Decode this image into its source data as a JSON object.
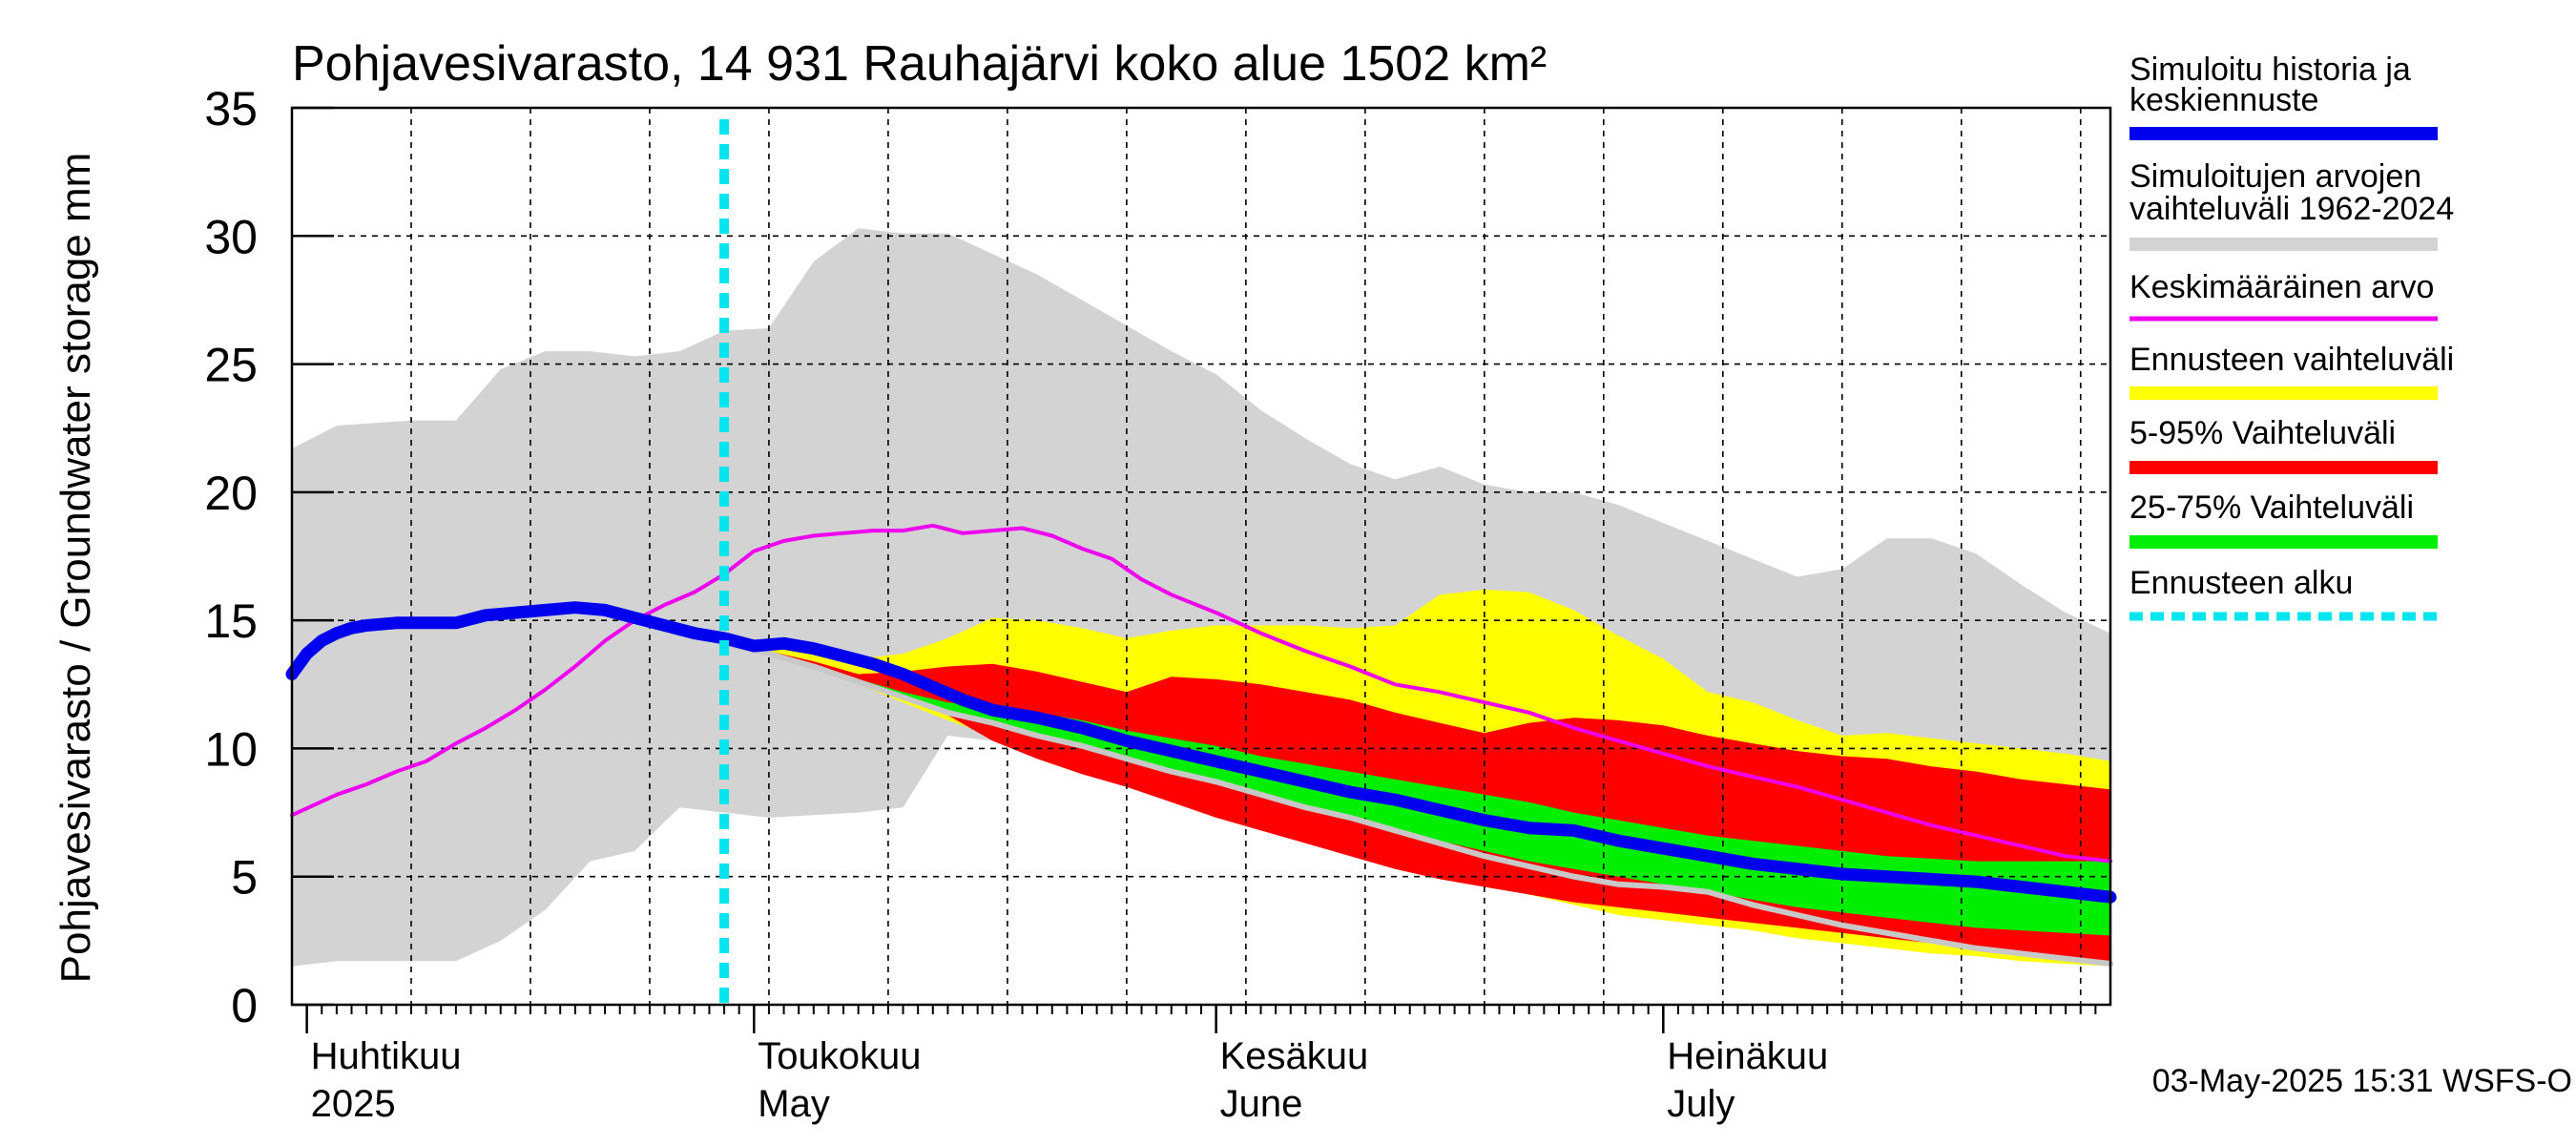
{
  "chart_data": {
    "type": "area",
    "title": "Pohjavesivarasto, 14 931 Rauhajärvi koko alue 1502 km²",
    "ylabel": "Pohjavesivarasto / Groundwater storage   mm",
    "ylim": [
      0,
      35
    ],
    "yticks": [
      "0",
      "5",
      "10",
      "15",
      "20",
      "25",
      "30",
      "35"
    ],
    "x_domain": [
      "2025-03-31",
      "2025-07-31"
    ],
    "months": [
      {
        "start": "2025-04-01",
        "fi": "Huhtikuu",
        "en": "2025"
      },
      {
        "start": "2025-05-01",
        "fi": "Toukokuu",
        "en": "May"
      },
      {
        "start": "2025-06-01",
        "fi": "Kesäkuu",
        "en": "June"
      },
      {
        "start": "2025-07-01",
        "fi": "Heinäkuu",
        "en": "July"
      }
    ],
    "forecast_start": "2025-04-29",
    "timestamp": "03-May-2025 15:31 WSFS-O",
    "colors": {
      "history": "#0000ee",
      "range": "#d3d3d3",
      "mean": "#ee00ee",
      "forecast_range": "#ffff00",
      "p5_95": "#ff0000",
      "p25_75": "#00ee00",
      "forecast_start": "#00e5ee",
      "median_grey": "#c8c8c8"
    },
    "legend": [
      {
        "label": "Simuloitu historia ja",
        "label2": "keskiennuste",
        "key": "history"
      },
      {
        "label": "Simuloitujen arvojen",
        "label2": "vaihteluväli 1962-2024",
        "key": "range"
      },
      {
        "label": "Keskimääräinen arvo",
        "key": "mean"
      },
      {
        "label": "Ennusteen vaihteluväli",
        "key": "forecast_range"
      },
      {
        "label": "5-95% Vaihteluväli",
        "key": "p5_95"
      },
      {
        "label": "25-75% Vaihteluväli",
        "key": "p25_75"
      },
      {
        "label": "Ennusteen alku",
        "key": "forecast_start"
      }
    ],
    "series": {
      "range_upper": {
        "t": [
          0,
          3,
          8,
          11,
          14,
          17,
          20,
          23,
          26,
          29,
          32,
          35,
          38,
          41,
          44,
          47,
          50,
          53,
          56,
          59,
          62,
          65,
          68,
          71,
          74,
          77,
          80,
          83,
          86,
          89,
          92,
          95,
          98,
          101,
          104,
          107,
          110,
          113,
          116,
          119,
          122
        ],
        "v": [
          21.7,
          22.6,
          22.8,
          22.8,
          24.8,
          25.5,
          25.5,
          25.3,
          25.5,
          26.3,
          26.4,
          29.0,
          30.3,
          30.1,
          30.1,
          29.3,
          28.5,
          27.5,
          26.5,
          25.5,
          24.6,
          23.2,
          22.1,
          21.1,
          20.5,
          21.0,
          20.3,
          20.0,
          20.0,
          19.5,
          18.8,
          18.1,
          17.4,
          16.7,
          17.0,
          18.2,
          18.2,
          17.6,
          16.4,
          15.3,
          14.5
        ]
      },
      "range_lower": {
        "t": [
          0,
          3,
          8,
          11,
          14,
          17,
          20,
          23,
          26,
          29,
          32,
          35,
          38,
          41,
          44,
          47,
          50,
          53,
          56,
          59,
          62,
          65,
          68,
          71,
          74,
          77,
          80,
          83,
          86,
          89,
          92,
          95,
          98,
          101,
          104,
          107,
          110,
          113,
          116,
          119,
          122
        ],
        "v": [
          1.5,
          1.7,
          1.7,
          1.7,
          2.5,
          3.7,
          5.6,
          6.0,
          7.7,
          7.5,
          7.3,
          7.4,
          7.5,
          7.7,
          10.5,
          10.3,
          10.2,
          10.0,
          9.8,
          9.6,
          9.5,
          9.4,
          9.3,
          9.2,
          9.1,
          8.9,
          8.7,
          8.5,
          8.3,
          8.1,
          7.9,
          7.7,
          7.5,
          7.3,
          7.1,
          6.9,
          6.7,
          6.5,
          6.3,
          6.1,
          5.9
        ]
      },
      "forecast_upper": {
        "t": [
          29,
          32,
          35,
          38,
          41,
          44,
          47,
          50,
          53,
          56,
          59,
          62,
          65,
          68,
          71,
          74,
          77,
          80,
          83,
          86,
          89,
          92,
          95,
          98,
          101,
          104,
          107,
          110,
          113,
          116,
          119,
          122
        ],
        "v": [
          14.1,
          14.0,
          13.8,
          13.5,
          13.7,
          14.3,
          15.1,
          15.0,
          14.7,
          14.3,
          14.6,
          14.8,
          14.8,
          14.8,
          14.7,
          14.8,
          16.0,
          16.2,
          16.1,
          15.4,
          14.4,
          13.5,
          12.2,
          11.8,
          11.1,
          10.5,
          10.6,
          10.4,
          10.2,
          10.0,
          9.8,
          9.5
        ]
      },
      "forecast_lower": {
        "t": [
          29,
          32,
          35,
          38,
          41,
          44,
          47,
          50,
          53,
          56,
          59,
          62,
          65,
          68,
          71,
          74,
          77,
          80,
          83,
          86,
          89,
          92,
          95,
          98,
          101,
          104,
          107,
          110,
          113,
          116,
          119,
          122
        ],
        "v": [
          14.1,
          13.7,
          13.2,
          12.5,
          11.8,
          11.1,
          10.5,
          9.9,
          9.3,
          8.7,
          8.1,
          7.6,
          7.1,
          6.6,
          6.1,
          5.6,
          5.1,
          4.7,
          4.3,
          3.9,
          3.5,
          3.3,
          3.1,
          2.9,
          2.6,
          2.4,
          2.2,
          2.0,
          1.9,
          1.7,
          1.6,
          1.5
        ]
      },
      "p95": {
        "t": [
          29,
          32,
          35,
          38,
          41,
          44,
          47,
          50,
          53,
          56,
          59,
          62,
          65,
          68,
          71,
          74,
          77,
          80,
          83,
          86,
          89,
          92,
          95,
          98,
          101,
          104,
          107,
          110,
          113,
          116,
          119,
          122
        ],
        "v": [
          14.1,
          13.8,
          13.4,
          12.9,
          13.0,
          13.2,
          13.3,
          13.0,
          12.6,
          12.2,
          12.8,
          12.7,
          12.5,
          12.2,
          11.9,
          11.4,
          11.0,
          10.6,
          11.0,
          11.2,
          11.1,
          10.9,
          10.5,
          10.2,
          9.9,
          9.7,
          9.6,
          9.3,
          9.1,
          8.8,
          8.6,
          8.4
        ]
      },
      "p5": {
        "t": [
          29,
          32,
          35,
          38,
          41,
          44,
          47,
          50,
          53,
          56,
          59,
          62,
          65,
          68,
          71,
          74,
          77,
          80,
          83,
          86,
          89,
          92,
          95,
          98,
          101,
          104,
          107,
          110,
          113,
          116,
          119,
          122
        ],
        "v": [
          14.1,
          13.7,
          13.2,
          12.6,
          12.0,
          11.3,
          10.3,
          9.6,
          9.0,
          8.5,
          7.9,
          7.3,
          6.8,
          6.3,
          5.8,
          5.3,
          4.9,
          4.6,
          4.3,
          4.0,
          3.8,
          3.6,
          3.4,
          3.2,
          3.0,
          2.8,
          2.6,
          2.4,
          2.2,
          2.0,
          1.8,
          1.7
        ]
      },
      "p75": {
        "t": [
          29,
          32,
          35,
          38,
          41,
          44,
          47,
          50,
          53,
          56,
          59,
          62,
          65,
          68,
          71,
          74,
          77,
          80,
          83,
          86,
          89,
          92,
          95,
          98,
          101,
          104,
          107,
          110,
          113,
          116,
          119,
          122
        ],
        "v": [
          14.1,
          13.8,
          13.3,
          12.7,
          12.2,
          11.8,
          11.6,
          11.4,
          11.1,
          10.7,
          10.4,
          10.1,
          9.7,
          9.4,
          9.1,
          8.8,
          8.5,
          8.2,
          7.9,
          7.5,
          7.2,
          6.9,
          6.6,
          6.4,
          6.2,
          6.0,
          5.8,
          5.7,
          5.6,
          5.6,
          5.6,
          5.6
        ]
      },
      "p25": {
        "t": [
          29,
          32,
          35,
          38,
          41,
          44,
          47,
          50,
          53,
          56,
          59,
          62,
          65,
          68,
          71,
          74,
          77,
          80,
          83,
          86,
          89,
          92,
          95,
          98,
          101,
          104,
          107,
          110,
          113,
          116,
          119,
          122
        ],
        "v": [
          14.1,
          13.7,
          13.2,
          12.6,
          12.0,
          11.4,
          10.9,
          10.4,
          10.0,
          9.5,
          9.1,
          8.6,
          8.2,
          7.7,
          7.3,
          6.8,
          6.4,
          6.0,
          5.6,
          5.3,
          5.0,
          4.7,
          4.4,
          4.1,
          3.8,
          3.6,
          3.4,
          3.2,
          3.0,
          2.9,
          2.8,
          2.7
        ]
      },
      "median": {
        "t": [
          29,
          32,
          35,
          38,
          41,
          44,
          47,
          50,
          53,
          56,
          59,
          62,
          65,
          68,
          71,
          74,
          77,
          80,
          83,
          86,
          89,
          92,
          95,
          98,
          101,
          104,
          107,
          110,
          113,
          116,
          119,
          122
        ],
        "v": [
          14.1,
          13.7,
          13.2,
          12.6,
          12.0,
          11.4,
          11.0,
          10.5,
          10.1,
          9.6,
          9.1,
          8.7,
          8.2,
          7.7,
          7.3,
          6.8,
          6.3,
          5.8,
          5.4,
          5.0,
          4.7,
          4.6,
          4.4,
          3.9,
          3.5,
          3.1,
          2.8,
          2.5,
          2.2,
          2.0,
          1.8,
          1.6
        ]
      },
      "history": {
        "t": [
          0,
          1,
          2,
          3,
          4,
          5,
          7,
          9,
          11,
          13,
          15,
          17,
          19,
          21,
          23,
          25,
          27,
          29,
          31,
          33,
          35,
          37,
          39,
          41,
          43,
          45,
          47,
          50,
          53,
          56,
          59,
          62,
          65,
          68,
          71,
          74,
          77,
          80,
          83,
          86,
          89,
          92,
          95,
          98,
          101,
          104,
          107,
          110,
          113,
          116,
          119,
          122
        ],
        "v": [
          12.9,
          13.7,
          14.2,
          14.5,
          14.7,
          14.8,
          14.9,
          14.9,
          14.9,
          15.2,
          15.3,
          15.4,
          15.5,
          15.4,
          15.1,
          14.8,
          14.5,
          14.3,
          14.0,
          14.1,
          13.9,
          13.6,
          13.3,
          12.9,
          12.4,
          11.9,
          11.5,
          11.2,
          10.8,
          10.3,
          9.9,
          9.5,
          9.1,
          8.7,
          8.3,
          8.0,
          7.6,
          7.2,
          6.9,
          6.8,
          6.4,
          6.1,
          5.8,
          5.5,
          5.3,
          5.1,
          5.0,
          4.9,
          4.8,
          4.6,
          4.4,
          4.2
        ]
      },
      "mean": {
        "t": [
          0,
          3,
          5,
          7,
          9,
          11,
          13,
          15,
          17,
          19,
          21,
          23,
          25,
          27,
          29,
          31,
          33,
          35,
          37,
          39,
          41,
          43,
          45,
          47,
          49,
          51,
          53,
          55,
          57,
          59,
          62,
          65,
          68,
          71,
          74,
          77,
          80,
          83,
          86,
          89,
          92,
          95,
          98,
          101,
          104,
          107,
          110,
          113,
          116,
          119,
          122
        ],
        "v": [
          7.4,
          8.2,
          8.6,
          9.1,
          9.5,
          10.2,
          10.8,
          11.5,
          12.3,
          13.2,
          14.2,
          15.0,
          15.6,
          16.1,
          16.8,
          17.7,
          18.1,
          18.3,
          18.4,
          18.5,
          18.5,
          18.7,
          18.4,
          18.5,
          18.6,
          18.3,
          17.8,
          17.4,
          16.6,
          16.0,
          15.3,
          14.5,
          13.8,
          13.2,
          12.5,
          12.2,
          11.8,
          11.4,
          10.8,
          10.3,
          9.8,
          9.3,
          8.9,
          8.5,
          8.0,
          7.5,
          7.0,
          6.6,
          6.2,
          5.8,
          5.6
        ]
      }
    }
  }
}
